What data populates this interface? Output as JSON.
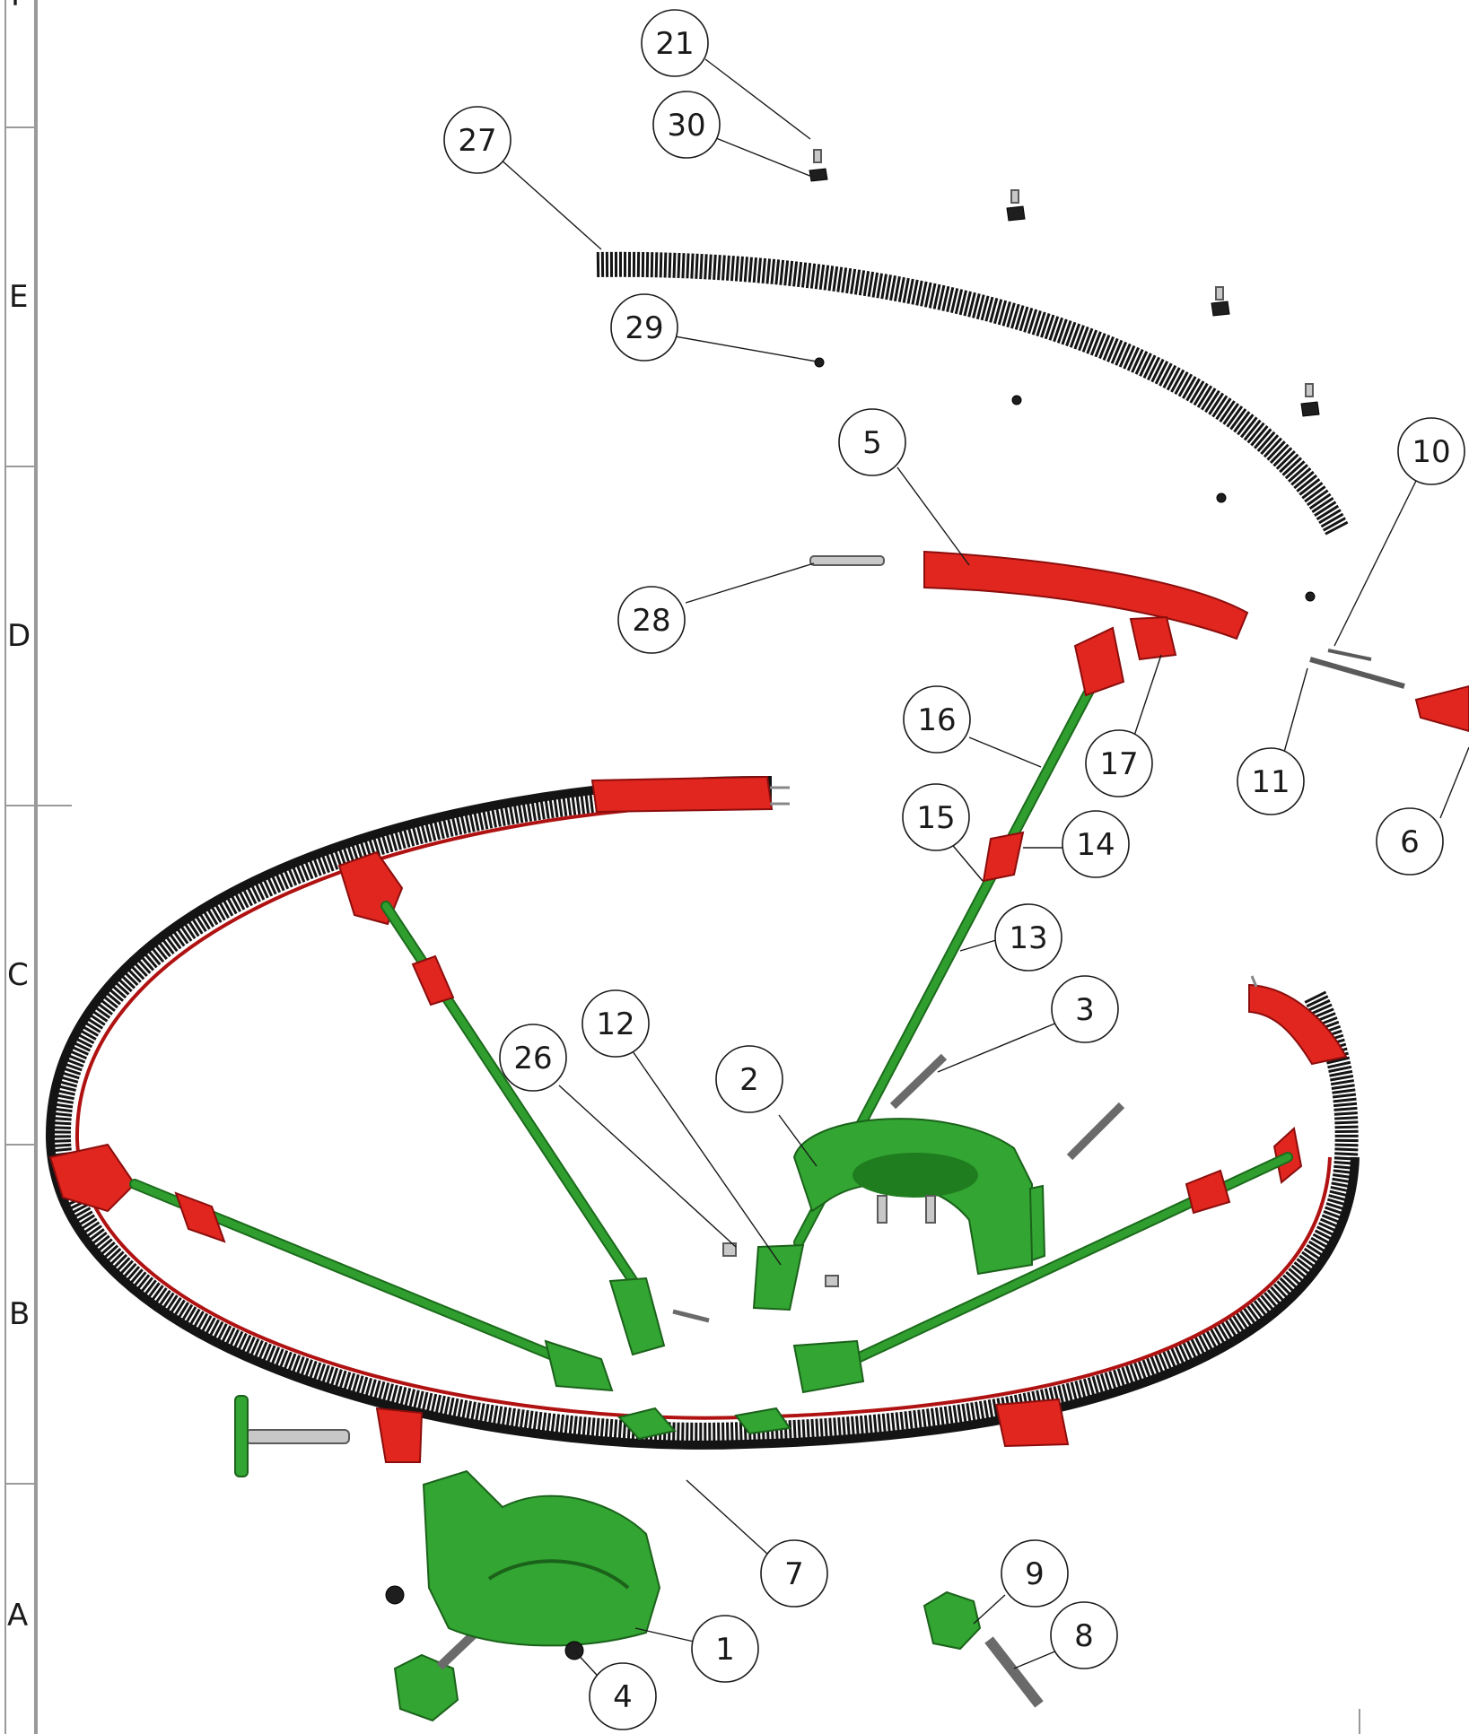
{
  "zones": [
    "F",
    "E",
    "D",
    "C",
    "B",
    "A"
  ],
  "balloons": [
    "21",
    "30",
    "27",
    "29",
    "5",
    "10",
    "28",
    "16",
    "17",
    "11",
    "15",
    "14",
    "6",
    "13",
    "3",
    "12",
    "26",
    "2",
    "7",
    "9",
    "1",
    "8",
    "4"
  ],
  "colors": {
    "rail_red": "#e0261e",
    "rod_green": "#32a532",
    "chain_black": "#141414",
    "hardware_grey": "#c8c8c8"
  }
}
